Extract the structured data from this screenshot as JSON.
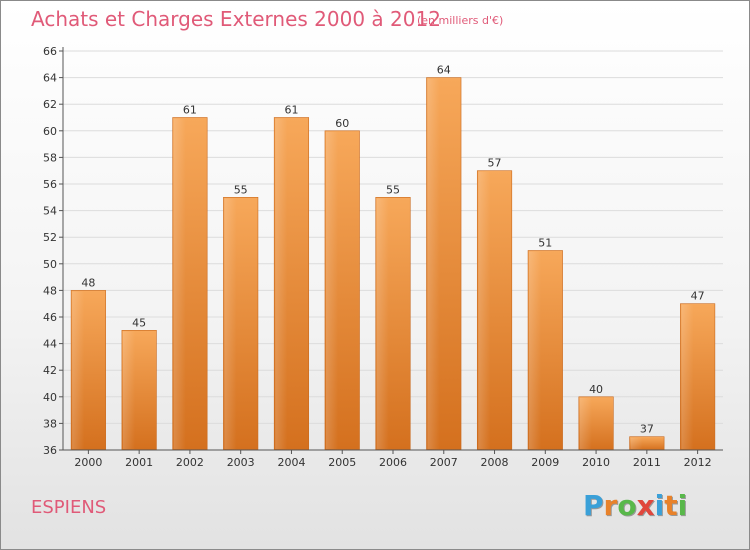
{
  "header": {
    "title": "Achats et Charges Externes 2000 à 2012",
    "subtitle": "(en milliers d'€)"
  },
  "footer": {
    "commune": "ESPIENS",
    "logo_letters": [
      "P",
      "r",
      "o",
      "x",
      "i",
      "t",
      "i"
    ],
    "logo_colors": [
      "#3aa0d8",
      "#e8822a",
      "#58b84a",
      "#e0463c",
      "#3aa0d8",
      "#e8822a",
      "#58b84a"
    ]
  },
  "colors": {
    "bar_light": "#f7a85a",
    "bar_dark": "#d4701e",
    "title": "#e05a78"
  },
  "chart_data": {
    "type": "bar",
    "categories": [
      "2000",
      "2001",
      "2002",
      "2003",
      "2004",
      "2005",
      "2006",
      "2007",
      "2008",
      "2009",
      "2010",
      "2011",
      "2012"
    ],
    "values": [
      48,
      45,
      61,
      55,
      61,
      60,
      55,
      64,
      57,
      51,
      40,
      37,
      47
    ],
    "ylim": [
      36,
      66
    ],
    "yticks": [
      36,
      38,
      40,
      42,
      44,
      46,
      48,
      50,
      52,
      54,
      56,
      58,
      60,
      62,
      64,
      66
    ],
    "grid": true
  }
}
